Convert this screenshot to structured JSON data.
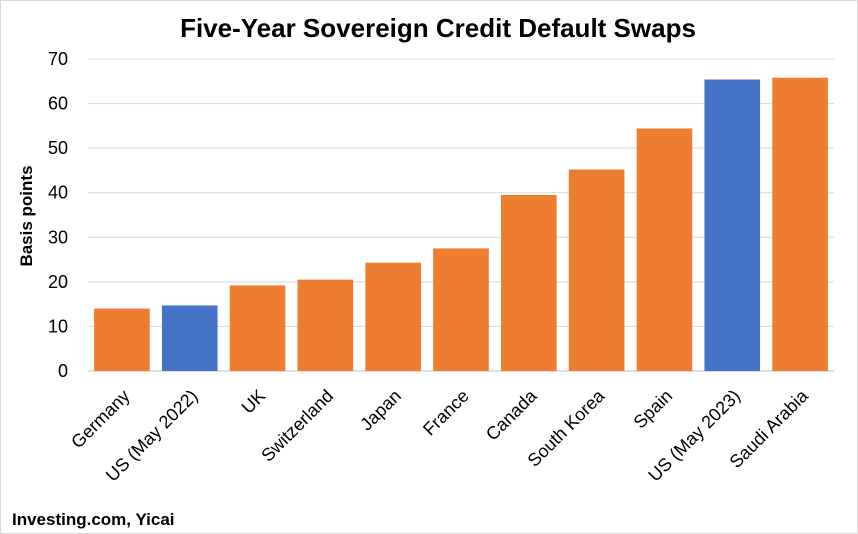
{
  "chart_data": {
    "type": "bar",
    "title": "Five-Year Sovereign Credit Default Swaps",
    "xlabel": "",
    "ylabel": "Basis points",
    "ylim": [
      0,
      70
    ],
    "yticks": [
      0,
      10,
      20,
      30,
      40,
      50,
      60,
      70
    ],
    "grid": true,
    "categories": [
      "Germany",
      "US (May 2022)",
      "UK",
      "Switzerland",
      "Japan",
      "France",
      "Canada",
      "South Korea",
      "Spain",
      "US (May 2023)",
      "Saudi Arabia"
    ],
    "values": [
      14,
      14.7,
      19.2,
      20.5,
      24.3,
      27.5,
      39.5,
      45.2,
      54.4,
      65.4,
      65.8
    ],
    "bar_colors": [
      "#ED7D31",
      "#4472C4",
      "#ED7D31",
      "#ED7D31",
      "#ED7D31",
      "#ED7D31",
      "#ED7D31",
      "#ED7D31",
      "#ED7D31",
      "#4472C4",
      "#ED7D31"
    ],
    "source": "Investing.com, Yicai"
  },
  "colors": {
    "orange": "#ED7D31",
    "blue": "#4472C4",
    "gridline": "#D9D9D9"
  }
}
